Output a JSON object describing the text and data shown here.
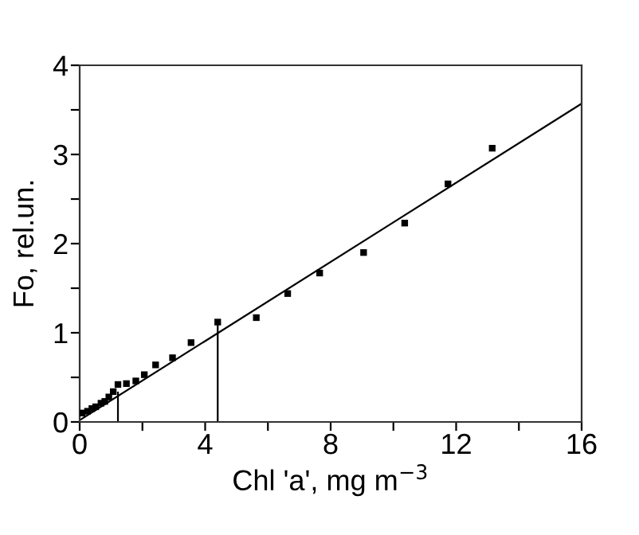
{
  "chart_data": {
    "type": "scatter",
    "xlabel": "Chl 'a', mg m$^{−3}$",
    "ylabel": "Fo, rel.un.",
    "xlim": [
      0,
      16
    ],
    "ylim": [
      0,
      4
    ],
    "xticks": [
      0,
      {
        "value": 2,
        "label": null
      },
      4,
      {
        "value": 6,
        "label": null
      },
      8,
      {
        "value": 10,
        "label": null
      },
      12,
      {
        "value": 14,
        "label": null
      },
      16
    ],
    "yticks": [
      0,
      {
        "value": 0.5,
        "label": null
      },
      1,
      {
        "value": 1.5,
        "label": null
      },
      2,
      {
        "value": 2.5,
        "label": null
      },
      3,
      {
        "value": 3.5,
        "label": null
      },
      4
    ],
    "grid": false,
    "legend": false,
    "series": [
      {
        "marker": "square",
        "color": "#000000",
        "x": [
          0.08,
          0.25,
          0.39,
          0.51,
          0.68,
          0.8,
          0.93,
          1.07,
          1.22,
          1.49,
          1.79,
          2.06,
          2.42,
          2.96,
          3.55,
          4.4,
          5.63,
          6.63,
          7.65,
          9.05,
          10.36,
          11.74,
          13.15
        ],
        "values": [
          0.1,
          0.12,
          0.15,
          0.17,
          0.21,
          0.23,
          0.28,
          0.34,
          0.42,
          0.43,
          0.46,
          0.53,
          0.64,
          0.72,
          0.89,
          1.12,
          1.17,
          1.44,
          1.67,
          1.9,
          2.23,
          2.67,
          3.07
        ]
      },
      {
        "type": "line",
        "marker": "none",
        "line_style": "solid",
        "color": "#000000",
        "x": [
          0,
          16
        ],
        "values": [
          0.02,
          3.57
        ]
      },
      {
        "type": "line",
        "marker": "none",
        "line_style": "solid",
        "color": "#000000",
        "x": [
          1.22,
          1.22
        ],
        "values": [
          0,
          0.33
        ]
      },
      {
        "type": "line",
        "marker": "none",
        "line_style": "solid",
        "color": "#000000",
        "x": [
          4.4,
          4.4
        ],
        "values": [
          0,
          1.12
        ]
      }
    ]
  }
}
